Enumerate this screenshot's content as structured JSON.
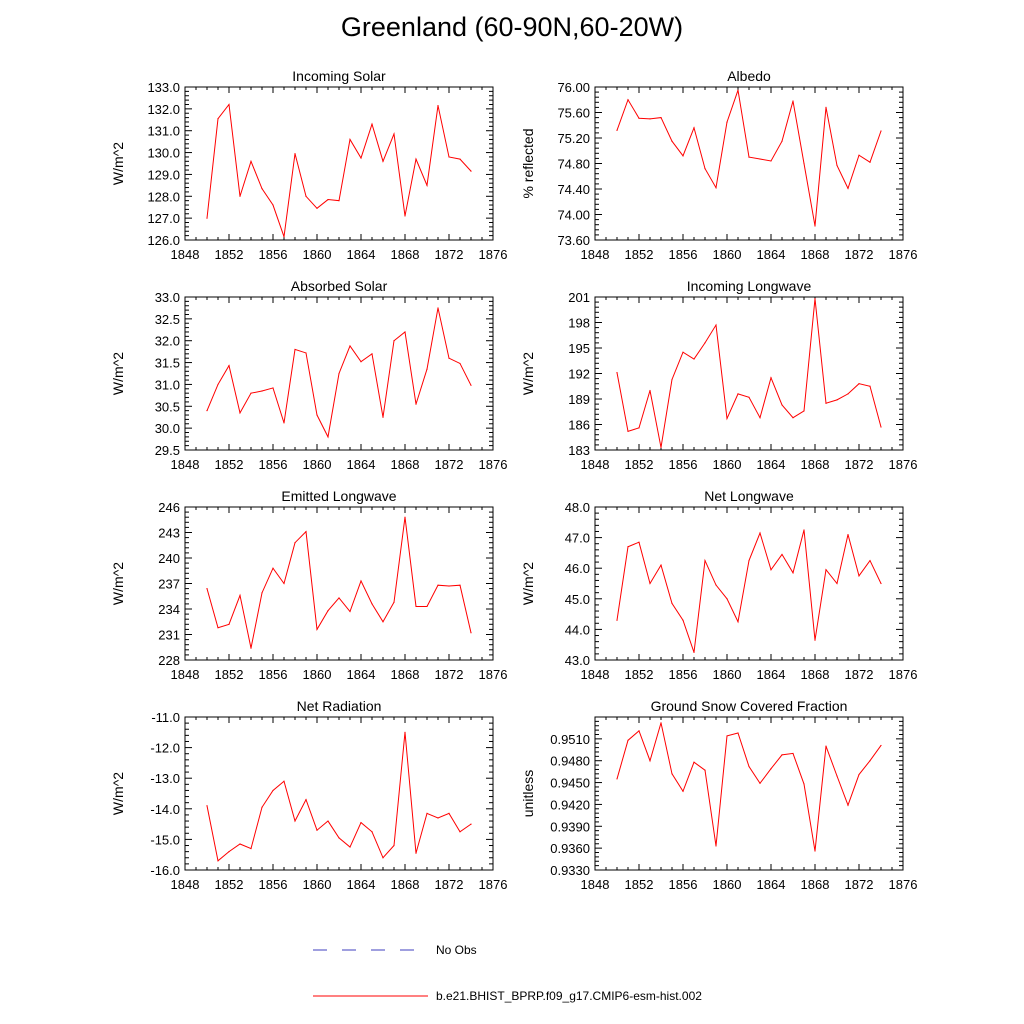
{
  "title": "Greenland (60-90N,60-20W)",
  "legend": {
    "items": [
      {
        "label": "No Obs",
        "color": "#3f3fbf",
        "style": "dashed"
      },
      {
        "label": "b.e21.BHIST_BPRP.f09_g17.CMIP6-esm-hist.002",
        "color": "#ff0000",
        "style": "solid"
      }
    ]
  },
  "chart_data": [
    {
      "type": "line",
      "title": "Incoming Solar",
      "xlabel": "",
      "ylabel": "W/m^2",
      "xlim": [
        1848,
        1876
      ],
      "xticks": [
        1848,
        1852,
        1856,
        1860,
        1864,
        1868,
        1872,
        1876
      ],
      "ylim": [
        126.0,
        133.0
      ],
      "yticks": [
        "126.0",
        "127.0",
        "128.0",
        "129.0",
        "130.0",
        "131.0",
        "132.0",
        "133.0"
      ],
      "x": [
        1850,
        1851,
        1852,
        1853,
        1854,
        1855,
        1856,
        1857,
        1858,
        1859,
        1860,
        1861,
        1862,
        1863,
        1864,
        1865,
        1866,
        1867,
        1868,
        1869,
        1870,
        1871,
        1872,
        1873,
        1874
      ],
      "series": [
        {
          "name": "b.e21.BHIST_BPRP.f09_g17.CMIP6-esm-hist.002",
          "color": "#ff0000",
          "values": [
            127.0,
            131.55,
            132.2,
            128.0,
            129.6,
            128.35,
            127.6,
            126.15,
            129.95,
            128.0,
            127.45,
            127.85,
            127.8,
            130.6,
            129.75,
            131.3,
            129.6,
            130.85,
            127.1,
            129.7,
            128.5,
            132.15,
            129.8,
            129.7,
            129.15
          ]
        }
      ]
    },
    {
      "type": "line",
      "title": "Albedo",
      "xlabel": "",
      "ylabel": "% reflected",
      "xlim": [
        1848,
        1876
      ],
      "xticks": [
        1848,
        1852,
        1856,
        1860,
        1864,
        1868,
        1872,
        1876
      ],
      "ylim": [
        73.6,
        76.0
      ],
      "yticks": [
        "73.60",
        "74.00",
        "74.40",
        "74.80",
        "75.20",
        "75.60",
        "76.00"
      ],
      "x": [
        1850,
        1851,
        1852,
        1853,
        1854,
        1855,
        1856,
        1857,
        1858,
        1859,
        1860,
        1861,
        1862,
        1863,
        1864,
        1865,
        1866,
        1867,
        1868,
        1869,
        1870,
        1871,
        1872,
        1873,
        1874
      ],
      "series": [
        {
          "name": "b.e21.BHIST_BPRP.f09_g17.CMIP6-esm-hist.002",
          "color": "#ff0000",
          "values": [
            75.32,
            75.8,
            75.51,
            75.5,
            75.52,
            75.15,
            74.92,
            75.36,
            74.72,
            74.42,
            75.45,
            75.95,
            74.9,
            74.87,
            74.84,
            75.15,
            75.78,
            74.8,
            73.82,
            75.68,
            74.77,
            74.41,
            74.93,
            74.82,
            75.31
          ]
        }
      ]
    },
    {
      "type": "line",
      "title": "Absorbed Solar",
      "xlabel": "",
      "ylabel": "W/m^2",
      "xlim": [
        1848,
        1876
      ],
      "xticks": [
        1848,
        1852,
        1856,
        1860,
        1864,
        1868,
        1872,
        1876
      ],
      "ylim": [
        29.5,
        33.0
      ],
      "yticks": [
        "29.5",
        "30.0",
        "30.5",
        "31.0",
        "31.5",
        "32.0",
        "32.5",
        "33.0"
      ],
      "x": [
        1850,
        1851,
        1852,
        1853,
        1854,
        1855,
        1856,
        1857,
        1858,
        1859,
        1860,
        1861,
        1862,
        1863,
        1864,
        1865,
        1866,
        1867,
        1868,
        1869,
        1870,
        1871,
        1872,
        1873,
        1874
      ],
      "series": [
        {
          "name": "b.e21.BHIST_BPRP.f09_g17.CMIP6-esm-hist.002",
          "color": "#ff0000",
          "values": [
            30.4,
            31.0,
            31.43,
            30.35,
            30.8,
            30.85,
            30.92,
            30.12,
            31.8,
            31.72,
            30.3,
            29.8,
            31.25,
            31.88,
            31.52,
            31.7,
            30.25,
            32.0,
            32.2,
            30.55,
            31.35,
            32.75,
            31.6,
            31.48,
            30.98
          ]
        }
      ]
    },
    {
      "type": "line",
      "title": "Incoming Longwave",
      "xlabel": "",
      "ylabel": "W/m^2",
      "xlim": [
        1848,
        1876
      ],
      "xticks": [
        1848,
        1852,
        1856,
        1860,
        1864,
        1868,
        1872,
        1876
      ],
      "ylim": [
        183,
        201
      ],
      "yticks": [
        "183",
        "186",
        "189",
        "192",
        "195",
        "198",
        "201"
      ],
      "x": [
        1850,
        1851,
        1852,
        1853,
        1854,
        1855,
        1856,
        1857,
        1858,
        1859,
        1860,
        1861,
        1862,
        1863,
        1864,
        1865,
        1866,
        1867,
        1868,
        1869,
        1870,
        1871,
        1872,
        1873,
        1874
      ],
      "series": [
        {
          "name": "b.e21.BHIST_BPRP.f09_g17.CMIP6-esm-hist.002",
          "color": "#ff0000",
          "values": [
            192.1,
            185.2,
            185.6,
            190.0,
            183.3,
            191.3,
            194.5,
            193.7,
            195.6,
            197.7,
            186.7,
            189.6,
            189.2,
            186.8,
            191.5,
            188.3,
            186.8,
            187.6,
            200.8,
            188.5,
            188.9,
            189.6,
            190.8,
            190.5,
            185.7
          ]
        }
      ]
    },
    {
      "type": "line",
      "title": "Emitted Longwave",
      "xlabel": "",
      "ylabel": "W/m^2",
      "xlim": [
        1848,
        1876
      ],
      "xticks": [
        1848,
        1852,
        1856,
        1860,
        1864,
        1868,
        1872,
        1876
      ],
      "ylim": [
        228,
        246
      ],
      "yticks": [
        "228",
        "231",
        "234",
        "237",
        "240",
        "243",
        "246"
      ],
      "x": [
        1850,
        1851,
        1852,
        1853,
        1854,
        1855,
        1856,
        1857,
        1858,
        1859,
        1860,
        1861,
        1862,
        1863,
        1864,
        1865,
        1866,
        1867,
        1868,
        1869,
        1870,
        1871,
        1872,
        1873,
        1874
      ],
      "series": [
        {
          "name": "b.e21.BHIST_BPRP.f09_g17.CMIP6-esm-hist.002",
          "color": "#ff0000",
          "values": [
            236.4,
            231.8,
            232.2,
            235.6,
            229.4,
            235.9,
            238.8,
            237.0,
            241.8,
            243.1,
            231.6,
            233.8,
            235.3,
            233.7,
            237.3,
            234.6,
            232.5,
            234.8,
            244.8,
            234.3,
            234.3,
            236.8,
            236.7,
            236.8,
            231.2
          ]
        }
      ]
    },
    {
      "type": "line",
      "title": "Net Longwave",
      "xlabel": "",
      "ylabel": "W/m^2",
      "xlim": [
        1848,
        1876
      ],
      "xticks": [
        1848,
        1852,
        1856,
        1860,
        1864,
        1868,
        1872,
        1876
      ],
      "ylim": [
        43.0,
        48.0
      ],
      "yticks": [
        "43.0",
        "44.0",
        "45.0",
        "46.0",
        "47.0",
        "48.0"
      ],
      "x": [
        1850,
        1851,
        1852,
        1853,
        1854,
        1855,
        1856,
        1857,
        1858,
        1859,
        1860,
        1861,
        1862,
        1863,
        1864,
        1865,
        1866,
        1867,
        1868,
        1869,
        1870,
        1871,
        1872,
        1873,
        1874
      ],
      "series": [
        {
          "name": "b.e21.BHIST_BPRP.f09_g17.CMIP6-esm-hist.002",
          "color": "#ff0000",
          "values": [
            44.3,
            46.7,
            46.85,
            45.5,
            46.1,
            44.85,
            44.3,
            43.25,
            46.25,
            45.45,
            45.0,
            44.25,
            46.25,
            47.15,
            45.95,
            46.45,
            45.85,
            47.25,
            43.65,
            45.95,
            45.5,
            47.1,
            45.75,
            46.25,
            45.5
          ]
        }
      ]
    },
    {
      "type": "line",
      "title": "Net Radiation",
      "xlabel": "",
      "ylabel": "W/m^2",
      "xlim": [
        1848,
        1876
      ],
      "xticks": [
        1848,
        1852,
        1856,
        1860,
        1864,
        1868,
        1872,
        1876
      ],
      "ylim": [
        -16.0,
        -11.0
      ],
      "yticks": [
        "-16.0",
        "-15.0",
        "-14.0",
        "-13.0",
        "-12.0",
        "-11.0"
      ],
      "x": [
        1850,
        1851,
        1852,
        1853,
        1854,
        1855,
        1856,
        1857,
        1858,
        1859,
        1860,
        1861,
        1862,
        1863,
        1864,
        1865,
        1866,
        1867,
        1868,
        1869,
        1870,
        1871,
        1872,
        1873,
        1874
      ],
      "series": [
        {
          "name": "b.e21.BHIST_BPRP.f09_g17.CMIP6-esm-hist.002",
          "color": "#ff0000",
          "values": [
            -13.9,
            -15.7,
            -15.4,
            -15.15,
            -15.3,
            -13.95,
            -13.4,
            -13.1,
            -14.4,
            -13.7,
            -14.7,
            -14.4,
            -14.95,
            -15.25,
            -14.45,
            -14.75,
            -15.6,
            -15.2,
            -11.5,
            -15.45,
            -14.15,
            -14.3,
            -14.15,
            -14.75,
            -14.5
          ]
        }
      ]
    },
    {
      "type": "line",
      "title": "Ground Snow Covered Fraction",
      "xlabel": "",
      "ylabel": "unitless",
      "xlim": [
        1848,
        1876
      ],
      "xticks": [
        1848,
        1852,
        1856,
        1860,
        1864,
        1868,
        1872,
        1876
      ],
      "ylim": [
        0.933,
        0.954
      ],
      "yticks": [
        "0.9330",
        "0.9360",
        "0.9390",
        "0.9420",
        "0.9450",
        "0.9480",
        "0.9510"
      ],
      "x": [
        1850,
        1851,
        1852,
        1853,
        1854,
        1855,
        1856,
        1857,
        1858,
        1859,
        1860,
        1861,
        1862,
        1863,
        1864,
        1865,
        1866,
        1867,
        1868,
        1869,
        1870,
        1871,
        1872,
        1873,
        1874
      ],
      "series": [
        {
          "name": "b.e21.BHIST_BPRP.f09_g17.CMIP6-esm-hist.002",
          "color": "#ff0000",
          "values": [
            0.9455,
            0.9508,
            0.9521,
            0.948,
            0.9532,
            0.9462,
            0.9438,
            0.9478,
            0.9467,
            0.9363,
            0.9514,
            0.9518,
            0.9472,
            0.9449,
            0.9469,
            0.9488,
            0.949,
            0.9448,
            0.9356,
            0.95,
            0.9459,
            0.9419,
            0.9461,
            0.948,
            0.9501
          ]
        }
      ]
    }
  ]
}
